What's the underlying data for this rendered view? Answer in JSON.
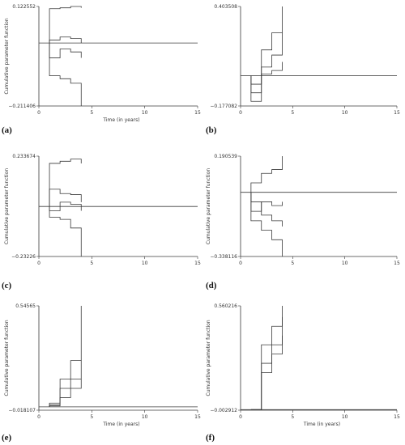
{
  "chart_data": [
    {
      "panel": "(a)",
      "type": "line",
      "xlabel": "Time (in years)",
      "ylabel": "Cumulative parameter function",
      "xlim": [
        0,
        15
      ],
      "ylim": [
        -0.211406,
        0.122552
      ],
      "x_ticks": [
        "0",
        "5",
        "10",
        "15"
      ],
      "y_ticks": [
        "0.122552",
        "−0.211406"
      ],
      "zero_line": {
        "y": 0.0,
        "x": [
          0,
          15
        ]
      },
      "series": [
        {
          "x": [
            1,
            2,
            3,
            4
          ],
          "y": [
            0.115,
            0.118,
            0.122552,
            0.118
          ]
        },
        {
          "x": [
            1,
            2,
            3,
            4
          ],
          "y": [
            0.01,
            0.02,
            0.015,
            0.0
          ]
        },
        {
          "x": [
            1,
            2,
            3,
            4
          ],
          "y": [
            -0.11,
            -0.12,
            -0.135,
            -0.211406
          ]
        },
        {
          "x": [
            1,
            2,
            3,
            4
          ],
          "y": [
            -0.05,
            -0.02,
            -0.03,
            -0.05
          ]
        }
      ]
    },
    {
      "panel": "(b)",
      "type": "line",
      "xlabel": "",
      "ylabel": "",
      "xlim": [
        0,
        15
      ],
      "ylim": [
        -0.177082,
        0.403508
      ],
      "x_ticks": [
        "0",
        "5",
        "10",
        "15"
      ],
      "y_ticks": [
        "0.403508",
        "−0.177082"
      ],
      "zero_line": {
        "y": 0.0,
        "x": [
          0,
          15
        ]
      },
      "series": [
        {
          "x": [
            1,
            2,
            3,
            4
          ],
          "y": [
            -0.15,
            0.15,
            0.25,
            0.403508
          ]
        },
        {
          "x": [
            1,
            2,
            3,
            4
          ],
          "y": [
            -0.05,
            0.05,
            0.12,
            0.25
          ]
        },
        {
          "x": [
            1,
            2,
            3,
            4
          ],
          "y": [
            -0.1,
            0.01,
            0.03,
            0.08
          ]
        }
      ]
    },
    {
      "panel": "(c)",
      "type": "line",
      "xlabel": "",
      "ylabel": "Cumulative parameter function",
      "xlim": [
        0,
        15
      ],
      "ylim": [
        -0.23226,
        0.233674
      ],
      "x_ticks": [
        "0",
        "5",
        "10",
        "15"
      ],
      "y_ticks": [
        "0.233674",
        "−0.23226"
      ],
      "zero_line": {
        "y": 0.0,
        "x": [
          0,
          15
        ]
      },
      "series": [
        {
          "x": [
            1,
            2,
            3,
            4
          ],
          "y": [
            0.2,
            0.21,
            0.22,
            0.2
          ]
        },
        {
          "x": [
            1,
            2,
            3,
            4
          ],
          "y": [
            0.08,
            0.06,
            0.055,
            0.02
          ]
        },
        {
          "x": [
            1,
            2,
            3,
            4
          ],
          "y": [
            -0.05,
            -0.06,
            -0.1,
            -0.23226
          ]
        },
        {
          "x": [
            1,
            2,
            3,
            4
          ],
          "y": [
            -0.02,
            0.02,
            0.01,
            -0.02
          ]
        }
      ]
    },
    {
      "panel": "(d)",
      "type": "line",
      "xlabel": "",
      "ylabel": "Cumulative parameter function",
      "xlim": [
        0,
        15
      ],
      "ylim": [
        -0.338116,
        0.190539
      ],
      "x_ticks": [
        "0",
        "5",
        "10",
        "15"
      ],
      "y_ticks": [
        "0.190539",
        "−0.338116"
      ],
      "zero_line": {
        "y": 0.0,
        "x": [
          0,
          15
        ]
      },
      "series": [
        {
          "x": [
            1,
            2,
            3,
            4
          ],
          "y": [
            0.05,
            0.1,
            0.12,
            0.190539
          ]
        },
        {
          "x": [
            1,
            2,
            3,
            4
          ],
          "y": [
            -0.05,
            -0.12,
            -0.15,
            -0.18
          ]
        },
        {
          "x": [
            1,
            2,
            3,
            4
          ],
          "y": [
            -0.15,
            -0.2,
            -0.25,
            -0.338116
          ]
        },
        {
          "x": [
            1,
            2,
            3,
            4
          ],
          "y": [
            -0.1,
            -0.05,
            -0.07,
            -0.05
          ]
        }
      ]
    },
    {
      "panel": "(e)",
      "type": "line",
      "xlabel": "Time (in years)",
      "ylabel": "Cumulative parameter function",
      "xlim": [
        0,
        15
      ],
      "ylim": [
        -0.018107,
        0.54565
      ],
      "x_ticks": [
        "0",
        "5",
        "10",
        "15"
      ],
      "y_ticks": [
        "0.54565",
        "−0.018107"
      ],
      "zero_line": {
        "y": 0.0,
        "x": [
          0,
          15
        ]
      },
      "series": [
        {
          "x": [
            1,
            2,
            3,
            4
          ],
          "y": [
            0.02,
            0.15,
            0.25,
            0.54565
          ]
        },
        {
          "x": [
            1,
            2,
            3,
            4
          ],
          "y": [
            0.01,
            0.1,
            0.15,
            0.25
          ]
        },
        {
          "x": [
            1,
            2,
            3,
            4
          ],
          "y": [
            0.005,
            0.05,
            0.1,
            0.15
          ]
        }
      ]
    },
    {
      "panel": "(f)",
      "type": "line",
      "xlabel": "Time (in years)",
      "ylabel": "Cumulative parameter function",
      "xlim": [
        0,
        15
      ],
      "ylim": [
        -0.002912,
        0.560216
      ],
      "x_ticks": [
        "0",
        "5",
        "10",
        "15"
      ],
      "y_ticks": [
        "0.560216",
        "−0.002912"
      ],
      "zero_line": {
        "y": 0.0,
        "x": [
          0,
          15
        ]
      },
      "series": [
        {
          "x": [
            1,
            2,
            3,
            4
          ],
          "y": [
            0.0,
            0.35,
            0.45,
            0.560216
          ]
        },
        {
          "x": [
            1,
            2,
            3,
            4
          ],
          "y": [
            0.0,
            0.25,
            0.35,
            0.5
          ]
        },
        {
          "x": [
            1,
            2,
            3,
            4
          ],
          "y": [
            0.0,
            0.2,
            0.3,
            0.4
          ]
        }
      ]
    }
  ]
}
